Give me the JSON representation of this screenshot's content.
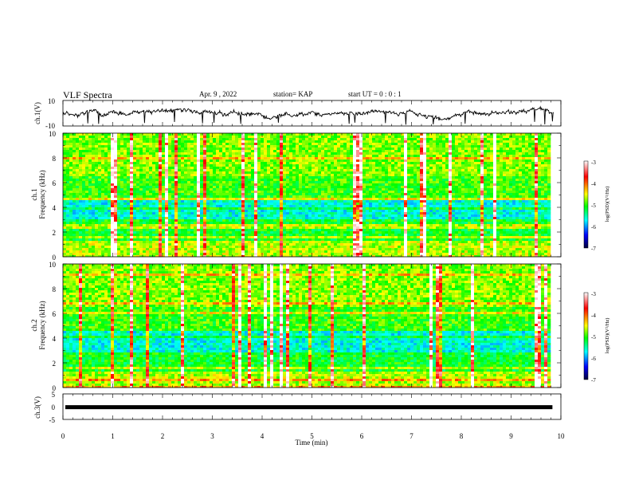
{
  "header": {
    "title": "VLF Spectra",
    "date": "Apr. 9 , 2022",
    "station": "station= KAP",
    "start": "start UT = 0 : 0 : 1"
  },
  "chart_data": [
    {
      "type": "line",
      "name": "ch1-waveform",
      "ylabel": "ch.1(V)",
      "ylim": [
        -10,
        10
      ],
      "yticks": [
        "10",
        "-10"
      ],
      "xlim": [
        0,
        10
      ],
      "color": "#000000"
    },
    {
      "type": "heatmap",
      "name": "ch1-spectrogram",
      "ylabel": "ch.1\nFrequency (kHz)",
      "ylim": [
        0,
        10
      ],
      "yticks": [
        "10",
        "8",
        "6",
        "4",
        "2",
        "0"
      ],
      "xlim": [
        0,
        10
      ],
      "data_end_min": 9.83,
      "colorbar": {
        "label": "log(PSD)(V²/Hz)",
        "range": [
          -7,
          -3
        ],
        "ticks": [
          "-3",
          "-4",
          "-5",
          "-6",
          "-7"
        ],
        "colors": [
          "#00003a",
          "#0000ff",
          "#00ffff",
          "#00ff00",
          "#ffff00",
          "#ff0000",
          "#ffffff"
        ]
      }
    },
    {
      "type": "heatmap",
      "name": "ch2-spectrogram",
      "ylabel": "ch.2\nFrequency (kHz)",
      "ylim": [
        0,
        10
      ],
      "yticks": [
        "10",
        "8",
        "6",
        "4",
        "2",
        "0"
      ],
      "xlim": [
        0,
        10
      ],
      "data_end_min": 9.83,
      "colorbar": {
        "label": "log(PSD)(V²/Hz)",
        "range": [
          -7,
          -3
        ],
        "ticks": [
          "-3",
          "-4",
          "-5",
          "-6",
          "-7"
        ],
        "colors": [
          "#00003a",
          "#0000ff",
          "#00ffff",
          "#00ff00",
          "#ffff00",
          "#ff0000",
          "#ffffff"
        ]
      }
    },
    {
      "type": "line",
      "name": "ch3-waveform",
      "ylabel": "ch.3(V)",
      "ylim": [
        -5,
        5
      ],
      "yticks": [
        "5",
        "0",
        "-5"
      ],
      "xlim": [
        0,
        10
      ],
      "level_v": -0.2,
      "xlabel": "Time (min)",
      "xticks": [
        "0",
        "1",
        "2",
        "3",
        "4",
        "5",
        "6",
        "7",
        "8",
        "9",
        "10"
      ]
    }
  ]
}
